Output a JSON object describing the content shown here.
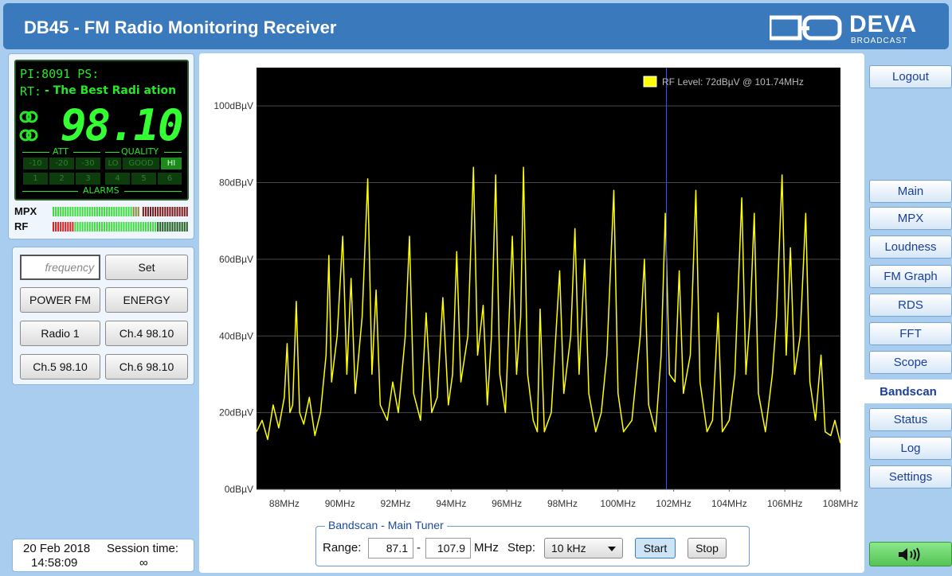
{
  "header": {
    "title": "DB45 - FM Radio Monitoring Receiver",
    "logo": "DEVA",
    "logo_sub": "BROADCAST"
  },
  "display": {
    "pi": "PI:8091 PS:",
    "rt_label": "RT:",
    "rt": "- The Best Radi ation",
    "frequency": "98.10",
    "att_label": "ATT",
    "quality_label": "QUALITY",
    "att": [
      "-10",
      "-20",
      "-30"
    ],
    "quality": [
      "LO",
      "GOOD",
      "HI"
    ],
    "alarms": [
      "1",
      "2",
      "3",
      "4",
      "5",
      "6"
    ],
    "alarms_label": "ALARMS"
  },
  "meters": [
    {
      "label": "MPX"
    },
    {
      "label": "RF"
    }
  ],
  "presets": {
    "frequency_placeholder": "frequency",
    "set": "Set",
    "buttons": [
      "POWER FM",
      "ENERGY",
      "Radio 1",
      "Ch.4 98.10",
      "Ch.5 98.10",
      "Ch.6 98.10"
    ]
  },
  "status": {
    "date": "20 Feb 2018",
    "session_label": "Session time:",
    "time": "14:58:09",
    "session": "∞"
  },
  "nav": {
    "logout": "Logout",
    "items": [
      "Main",
      "MPX",
      "Loudness",
      "FM Graph",
      "RDS",
      "FFT",
      "Scope",
      "Bandscan",
      "Status",
      "Log",
      "Settings"
    ],
    "active": 7
  },
  "chart_data": {
    "type": "line",
    "legend": "RF Level: 72dBµV @ 101.74MHz",
    "cursor": 101.74,
    "cursor_color": "#3a4cff",
    "color": "#ffff00",
    "grid": true,
    "xlim": [
      87,
      108
    ],
    "ylim": [
      0,
      110
    ],
    "xticks": [
      {
        "value": 88,
        "label": "88MHz"
      },
      {
        "value": 90,
        "label": "90MHz"
      },
      {
        "value": 92,
        "label": "92MHz"
      },
      {
        "value": 94,
        "label": "94MHz"
      },
      {
        "value": 96,
        "label": "96MHz"
      },
      {
        "value": 98,
        "label": "98MHz"
      },
      {
        "value": 100,
        "label": "100MHz"
      },
      {
        "value": 102,
        "label": "102MHz"
      },
      {
        "value": 104,
        "label": "104MHz"
      },
      {
        "value": 106,
        "label": "106MHz"
      },
      {
        "value": 108,
        "label": "108MHz"
      }
    ],
    "yticks": [
      {
        "value": 0,
        "label": "0dBµV"
      },
      {
        "value": 20,
        "label": "20dBµV"
      },
      {
        "value": 40,
        "label": "40dBµV"
      },
      {
        "value": 60,
        "label": "60dBµV"
      },
      {
        "value": 80,
        "label": "80dBµV"
      },
      {
        "value": 100,
        "label": "100dBµV"
      }
    ],
    "x": [
      87.0,
      87.2,
      87.4,
      87.6,
      87.8,
      88.0,
      88.1,
      88.2,
      88.3,
      88.43,
      88.55,
      88.7,
      88.9,
      89.1,
      89.3,
      89.5,
      89.6,
      89.7,
      89.9,
      90.1,
      90.25,
      90.4,
      90.55,
      90.8,
      91.0,
      91.15,
      91.3,
      91.45,
      91.7,
      91.9,
      92.1,
      92.35,
      92.5,
      92.65,
      92.9,
      93.1,
      93.3,
      93.5,
      93.7,
      93.9,
      94.05,
      94.2,
      94.35,
      94.6,
      94.8,
      94.95,
      95.15,
      95.3,
      95.45,
      95.6,
      95.75,
      95.95,
      96.2,
      96.35,
      96.5,
      96.6,
      96.75,
      96.95,
      97.1,
      97.2,
      97.35,
      97.6,
      97.9,
      98.05,
      98.3,
      98.45,
      98.6,
      98.8,
      98.95,
      99.2,
      99.4,
      99.6,
      99.85,
      100.0,
      100.2,
      100.5,
      100.8,
      100.95,
      101.1,
      101.35,
      101.55,
      101.7,
      101.85,
      102.05,
      102.2,
      102.35,
      102.6,
      102.8,
      102.95,
      103.2,
      103.4,
      103.6,
      103.75,
      104.0,
      104.2,
      104.45,
      104.6,
      104.75,
      104.9,
      105.05,
      105.3,
      105.55,
      105.7,
      105.9,
      106.05,
      106.2,
      106.35,
      106.55,
      106.75,
      106.9,
      107.1,
      107.3,
      107.45,
      107.65,
      107.8,
      108.0
    ],
    "values": [
      15,
      18,
      13,
      22,
      16,
      24,
      38,
      20,
      22,
      49,
      20,
      17,
      24,
      14,
      20,
      35,
      61,
      28,
      40,
      66,
      30,
      55,
      25,
      45,
      81,
      30,
      52,
      22,
      18,
      28,
      20,
      40,
      66,
      25,
      18,
      46,
      20,
      24,
      50,
      22,
      30,
      62,
      28,
      40,
      84,
      35,
      48,
      22,
      40,
      82,
      30,
      20,
      66,
      30,
      45,
      84,
      30,
      18,
      15,
      47,
      15,
      20,
      57,
      25,
      40,
      68,
      30,
      60,
      25,
      15,
      20,
      35,
      78,
      25,
      15,
      18,
      40,
      60,
      22,
      15,
      35,
      72,
      30,
      28,
      57,
      25,
      35,
      78,
      28,
      15,
      18,
      46,
      15,
      18,
      30,
      76,
      30,
      45,
      72,
      25,
      15,
      30,
      45,
      82,
      35,
      63,
      30,
      40,
      72,
      28,
      18,
      35,
      15,
      14,
      18,
      12
    ]
  },
  "controls": {
    "legend": "Bandscan - Main Tuner",
    "range_label": "Range:",
    "range_from": "87.1",
    "range_sep": "-",
    "range_to": "107.9",
    "unit": "MHz",
    "step_label": "Step:",
    "step": "10 kHz",
    "start": "Start",
    "stop": "Stop"
  }
}
